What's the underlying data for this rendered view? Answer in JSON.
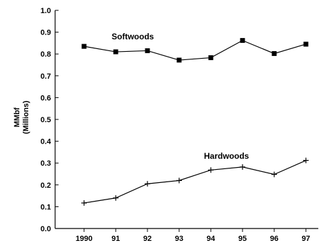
{
  "chart_data": {
    "type": "line",
    "categories": [
      "1990",
      "91",
      "92",
      "93",
      "94",
      "95",
      "96",
      "97"
    ],
    "series": [
      {
        "name": "Softwoods",
        "marker": "square",
        "values": [
          0.835,
          0.81,
          0.815,
          0.772,
          0.783,
          0.862,
          0.802,
          0.845
        ]
      },
      {
        "name": "Hardwoods",
        "marker": "plus",
        "values": [
          0.117,
          0.14,
          0.205,
          0.22,
          0.268,
          0.282,
          0.248,
          0.312
        ]
      }
    ],
    "ylabel_line1": "MMbf",
    "ylabel_line2": "(Millions)",
    "ylim": [
      0.0,
      1.0
    ],
    "yticks": [
      "0.0",
      "0.1",
      "0.2",
      "0.3",
      "0.4",
      "0.5",
      "0.6",
      "0.7",
      "0.8",
      "0.9",
      "1.0"
    ],
    "grid": false,
    "line_color": "#000000"
  }
}
